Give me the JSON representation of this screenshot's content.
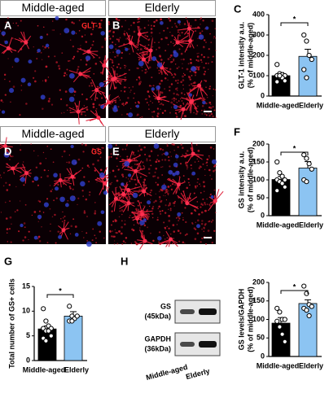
{
  "images": [
    {
      "panel": "A",
      "title": "Middle-aged",
      "stain": "GLT-1"
    },
    {
      "panel": "B",
      "title": "Elderly"
    },
    {
      "panel": "D",
      "title": "Middle-aged",
      "stain": "GS"
    },
    {
      "panel": "E",
      "title": "Elderly"
    }
  ],
  "blot": {
    "panel": "H",
    "bands": [
      {
        "name": "GS",
        "size": "(45kDa)"
      },
      {
        "name": "GAPDH",
        "size": "(36kDa)"
      }
    ],
    "lanes": [
      "Middle-aged",
      "Elderly"
    ]
  },
  "chart_data": [
    {
      "type": "bar",
      "panel": "C",
      "ylabel": [
        "GLT-1 intensity a.u.",
        "(% of middle-aged)"
      ],
      "categories": [
        "Middle-aged",
        "Elderly"
      ],
      "values": [
        100,
        195
      ],
      "errors": [
        15,
        35
      ],
      "colors": [
        "#000000",
        "#8cc4f2"
      ],
      "points": [
        [
          155,
          110,
          105,
          100,
          100,
          95,
          90,
          75,
          70,
          100
        ],
        [
          300,
          270,
          200,
          180,
          130,
          90
        ]
      ],
      "ylim": [
        0,
        400
      ],
      "yticks": [
        0,
        100,
        200,
        300,
        400
      ],
      "significance": "*"
    },
    {
      "type": "bar",
      "panel": "F",
      "ylabel": [
        "GS intensity a.u.",
        "(% of middle-aged)"
      ],
      "categories": [
        "Middle-aged",
        "Elderly"
      ],
      "values": [
        101,
        133
      ],
      "errors": [
        9,
        18
      ],
      "colors": [
        "#000000",
        "#8cc4f2"
      ],
      "points": [
        [
          150,
          120,
          110,
          100,
          100,
          95,
          90,
          80,
          70
        ],
        [
          170,
          160,
          145,
          130,
          100,
          95
        ]
      ],
      "ylim": [
        0,
        200
      ],
      "yticks": [
        0,
        50,
        100,
        150,
        200
      ],
      "significance": "*"
    },
    {
      "type": "bar",
      "panel": "G",
      "ylabel": [
        "Total number of GS+ cells"
      ],
      "categories": [
        "Middle-aged",
        "Elderly"
      ],
      "values": [
        6.4,
        9
      ],
      "errors": [
        0.6,
        0.9
      ],
      "colors": [
        "#000000",
        "#8cc4f2"
      ],
      "points": [
        [
          10.5,
          8,
          7,
          6.5,
          6.5,
          6,
          6,
          5,
          4.5,
          4
        ],
        [
          11,
          9,
          8.5,
          9,
          8,
          8
        ]
      ],
      "ylim": [
        0,
        15
      ],
      "yticks": [
        0,
        5,
        10,
        15
      ],
      "significance": "*"
    },
    {
      "type": "bar",
      "ylabel": [
        "GS levels/GAPDH",
        "(% of middle-aged)"
      ],
      "categories": [
        "Middle-aged",
        "Elderly"
      ],
      "values": [
        90,
        143
      ],
      "errors": [
        15,
        10
      ],
      "colors": [
        "#000000",
        "#8cc4f2"
      ],
      "points": [
        [
          130,
          120,
          100,
          100,
          95,
          80,
          60,
          40
        ],
        [
          190,
          170,
          140,
          135,
          130,
          125,
          110
        ]
      ],
      "ylim": [
        0,
        200
      ],
      "yticks": [
        0,
        50,
        100,
        150,
        200
      ],
      "significance": "*"
    }
  ]
}
